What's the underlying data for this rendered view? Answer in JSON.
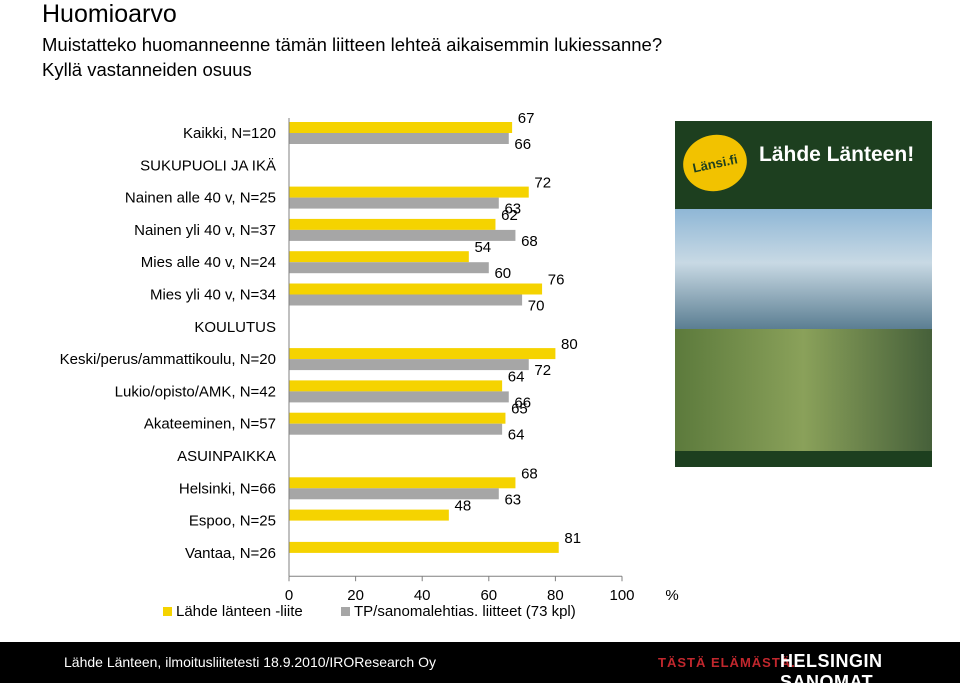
{
  "header": {
    "title": "Huomioarvo",
    "subtitle_line1": "Muistatteko huomanneenne tämän liitteen lehteä aikaisemmin lukiessanne?",
    "subtitle_line2": "Kyllä vastanneiden osuus"
  },
  "legend": {
    "series1": "Lähde länteen -liite",
    "series2": "TP/sanomalehtias. liitteet (73 kpl)"
  },
  "colors": {
    "series1": "#f5d300",
    "series2": "#a6a6a6",
    "axis": "#808080"
  },
  "chart_data": {
    "type": "bar",
    "orientation": "horizontal",
    "categories": [
      "Kaikki, N=120",
      "SUKUPUOLI JA IKÄ",
      "Nainen alle 40 v, N=25",
      "Nainen yli 40 v, N=37",
      "Mies alle 40 v, N=24",
      "Mies yli 40 v, N=34",
      "KOULUTUS",
      "Keski/perus/ammattikoulu, N=20",
      "Lukio/opisto/AMK, N=42",
      "Akateeminen, N=57",
      "ASUINPAIKKA",
      "Helsinki, N=66",
      "Espoo, N=25",
      "Vantaa, N=26"
    ],
    "series": [
      {
        "name": "Lähde länteen -liite",
        "values": [
          67,
          null,
          72,
          62,
          54,
          76,
          null,
          80,
          64,
          65,
          null,
          68,
          48,
          81
        ],
        "labels": [
          "67",
          "",
          "72",
          "62",
          "54",
          "76",
          "",
          "80",
          "64",
          "65",
          "",
          "68",
          "48",
          "81"
        ]
      },
      {
        "name": "TP/sanomalehtias. liitteet (73 kpl)",
        "values": [
          66,
          null,
          63,
          68,
          60,
          70,
          null,
          72,
          66,
          64,
          null,
          63,
          null,
          null
        ],
        "labels": [
          "66",
          "",
          "63",
          "68",
          "60",
          "70",
          "",
          "72",
          "66",
          "64",
          "",
          "63",
          "",
          ""
        ]
      }
    ],
    "xticks": [
      "0",
      "20",
      "40",
      "60",
      "80",
      "100"
    ],
    "xlim": [
      0,
      100
    ],
    "xunit": "%"
  },
  "cover": {
    "logo": "Länsi.fi",
    "brand": "Lähde Länteen!"
  },
  "footer": {
    "source": "Lähde Länteen, ilmoitusliitetesti 18.9.2010/IROResearch Oy",
    "slogan": "TÄSTÄ ELÄMÄSTÄ.",
    "brand": "HELSINGIN SANOMAT"
  }
}
